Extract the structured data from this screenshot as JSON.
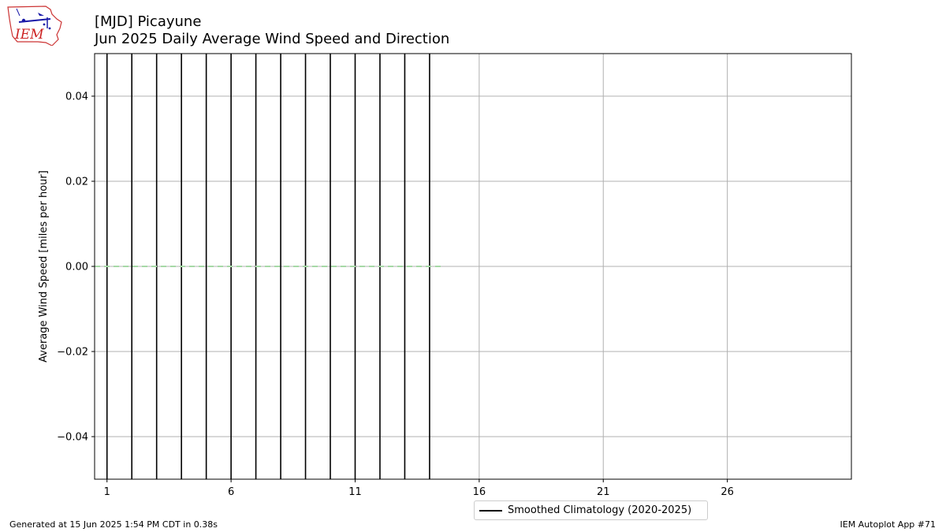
{
  "header": {
    "title_line1": "[MJD] Picayune",
    "title_line2": "Jun 2025 Daily Average Wind Speed and Direction"
  },
  "logo": {
    "text": "IEM",
    "icon": "iem-iowa-logo-icon"
  },
  "footer": {
    "left": "Generated at 15 Jun 2025 1:54 PM CDT in 0.38s",
    "right": "IEM Autoplot App #71"
  },
  "chart_data": {
    "type": "bar",
    "title": "[MJD] Picayune\nJun 2025 Daily Average Wind Speed and Direction",
    "xlabel": "",
    "ylabel": "Average Wind Speed [miles per hour]",
    "x_ticks": [
      1,
      6,
      11,
      16,
      21,
      26
    ],
    "y_ticks": [
      -0.04,
      -0.02,
      0.0,
      0.02,
      0.04
    ],
    "y_tick_labels": [
      "−0.04",
      "−0.02",
      "0.00",
      "0.02",
      "0.04"
    ],
    "xlim": [
      0.5,
      31.0
    ],
    "ylim": [
      -0.05,
      0.05
    ],
    "grid": true,
    "days": [
      1,
      2,
      3,
      4,
      5,
      6,
      7,
      8,
      9,
      10,
      11,
      12,
      13,
      14
    ],
    "values": [
      0,
      0,
      0,
      0,
      0,
      0,
      0,
      0,
      0,
      0,
      0,
      0,
      0,
      0
    ],
    "bar_color": "#000000",
    "climatology": {
      "name": "Smoothed Climatology (2020-2025)",
      "x": [
        0.5,
        14.5
      ],
      "y": [
        0,
        0
      ],
      "color": "#a6d9a6"
    },
    "legend": {
      "labels": [
        "Smoothed Climatology (2020-2025)"
      ],
      "placement": "bottom-center"
    }
  }
}
